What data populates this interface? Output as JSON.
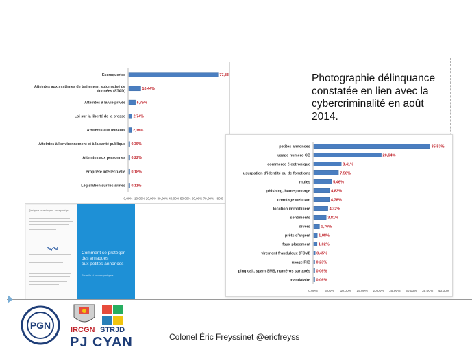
{
  "slide": {
    "caption_lines": [
      "Photographie délinquance",
      "constatée en lien avec la",
      "cybercriminalité en août",
      "2014."
    ],
    "footer": "Colonel Éric Freyssinet @ericfreyss",
    "bar_color": "#4a7ec0",
    "label_color": "#c0232b"
  },
  "brochure": {
    "title_lines": [
      "Comment se protéger",
      "des arnaques",
      "aux petites annonces"
    ],
    "subtitle": "Conseils et bonnes pratiques",
    "left_heading": "Quelques conseils pour vous protéger",
    "brands": [
      "PayPal"
    ]
  },
  "logos": {
    "pgn_text": "PGN",
    "irc_text": "IRCGN",
    "strjd_text": "STRJD",
    "pj_text": "PJ CYAN"
  },
  "chart_data": [
    {
      "type": "bar",
      "orientation": "horizontal",
      "categories": [
        "Escroqueries",
        "Atteintes aux systèmes de traitement automatisé de données (STAD)",
        "Atteintes à la vie privée",
        "Loi sur la liberté de la presse",
        "Atteintes aux mineurs",
        "Atteintes à l'environnement et à la santé publique",
        "Atteintes aux personnes",
        "Propriété intellectuelle",
        "Législation sur les armes"
      ],
      "values": [
        77.83,
        10.44,
        5.75,
        2.74,
        2.38,
        0.35,
        0.22,
        0.18,
        0.11
      ],
      "value_labels": [
        "77,83%",
        "10,44%",
        "5,75%",
        "2,74%",
        "2,38%",
        "0,35%",
        "0,22%",
        "0,18%",
        "0,11%"
      ],
      "xticks": [
        "0,00%",
        "10,00%",
        "20,00%",
        "30,00%",
        "40,00%",
        "50,00%",
        "60,00%",
        "70,00%",
        "80,0"
      ],
      "xlim": [
        0,
        80
      ]
    },
    {
      "type": "bar",
      "orientation": "horizontal",
      "categories": [
        "petites annonces",
        "usage numéro CB",
        "commerce électronique",
        "usurpation d'identité ou de fonctions",
        "mules",
        "phishing, hameçonnage",
        "chantage webcam",
        "location immobilière",
        "sentiments",
        "divers",
        "prêts d'argent",
        "faux placement",
        "virement frauduleux (FOVI)",
        "usage RIB",
        "ping call, spam SMS, numéros surtaxés",
        "mandataire"
      ],
      "values": [
        35.53,
        20.64,
        8.41,
        7.56,
        5.46,
        4.83,
        4.78,
        4.32,
        3.81,
        1.76,
        1.08,
        1.02,
        0.45,
        0.23,
        0.06,
        0.06
      ],
      "value_labels": [
        "35,53%",
        "20,64%",
        "8,41%",
        "7,56%",
        "5,46%",
        "4,83%",
        "4,78%",
        "4,32%",
        "3,81%",
        "1,76%",
        "1,08%",
        "1,02%",
        "0,45%",
        "0,23%",
        "0,06%",
        "0,06%"
      ],
      "xticks": [
        "0,00%",
        "5,00%",
        "10,00%",
        "15,00%",
        "20,00%",
        "25,00%",
        "30,00%",
        "35,00%",
        "40,00%"
      ],
      "xlim": [
        0,
        40
      ]
    }
  ]
}
